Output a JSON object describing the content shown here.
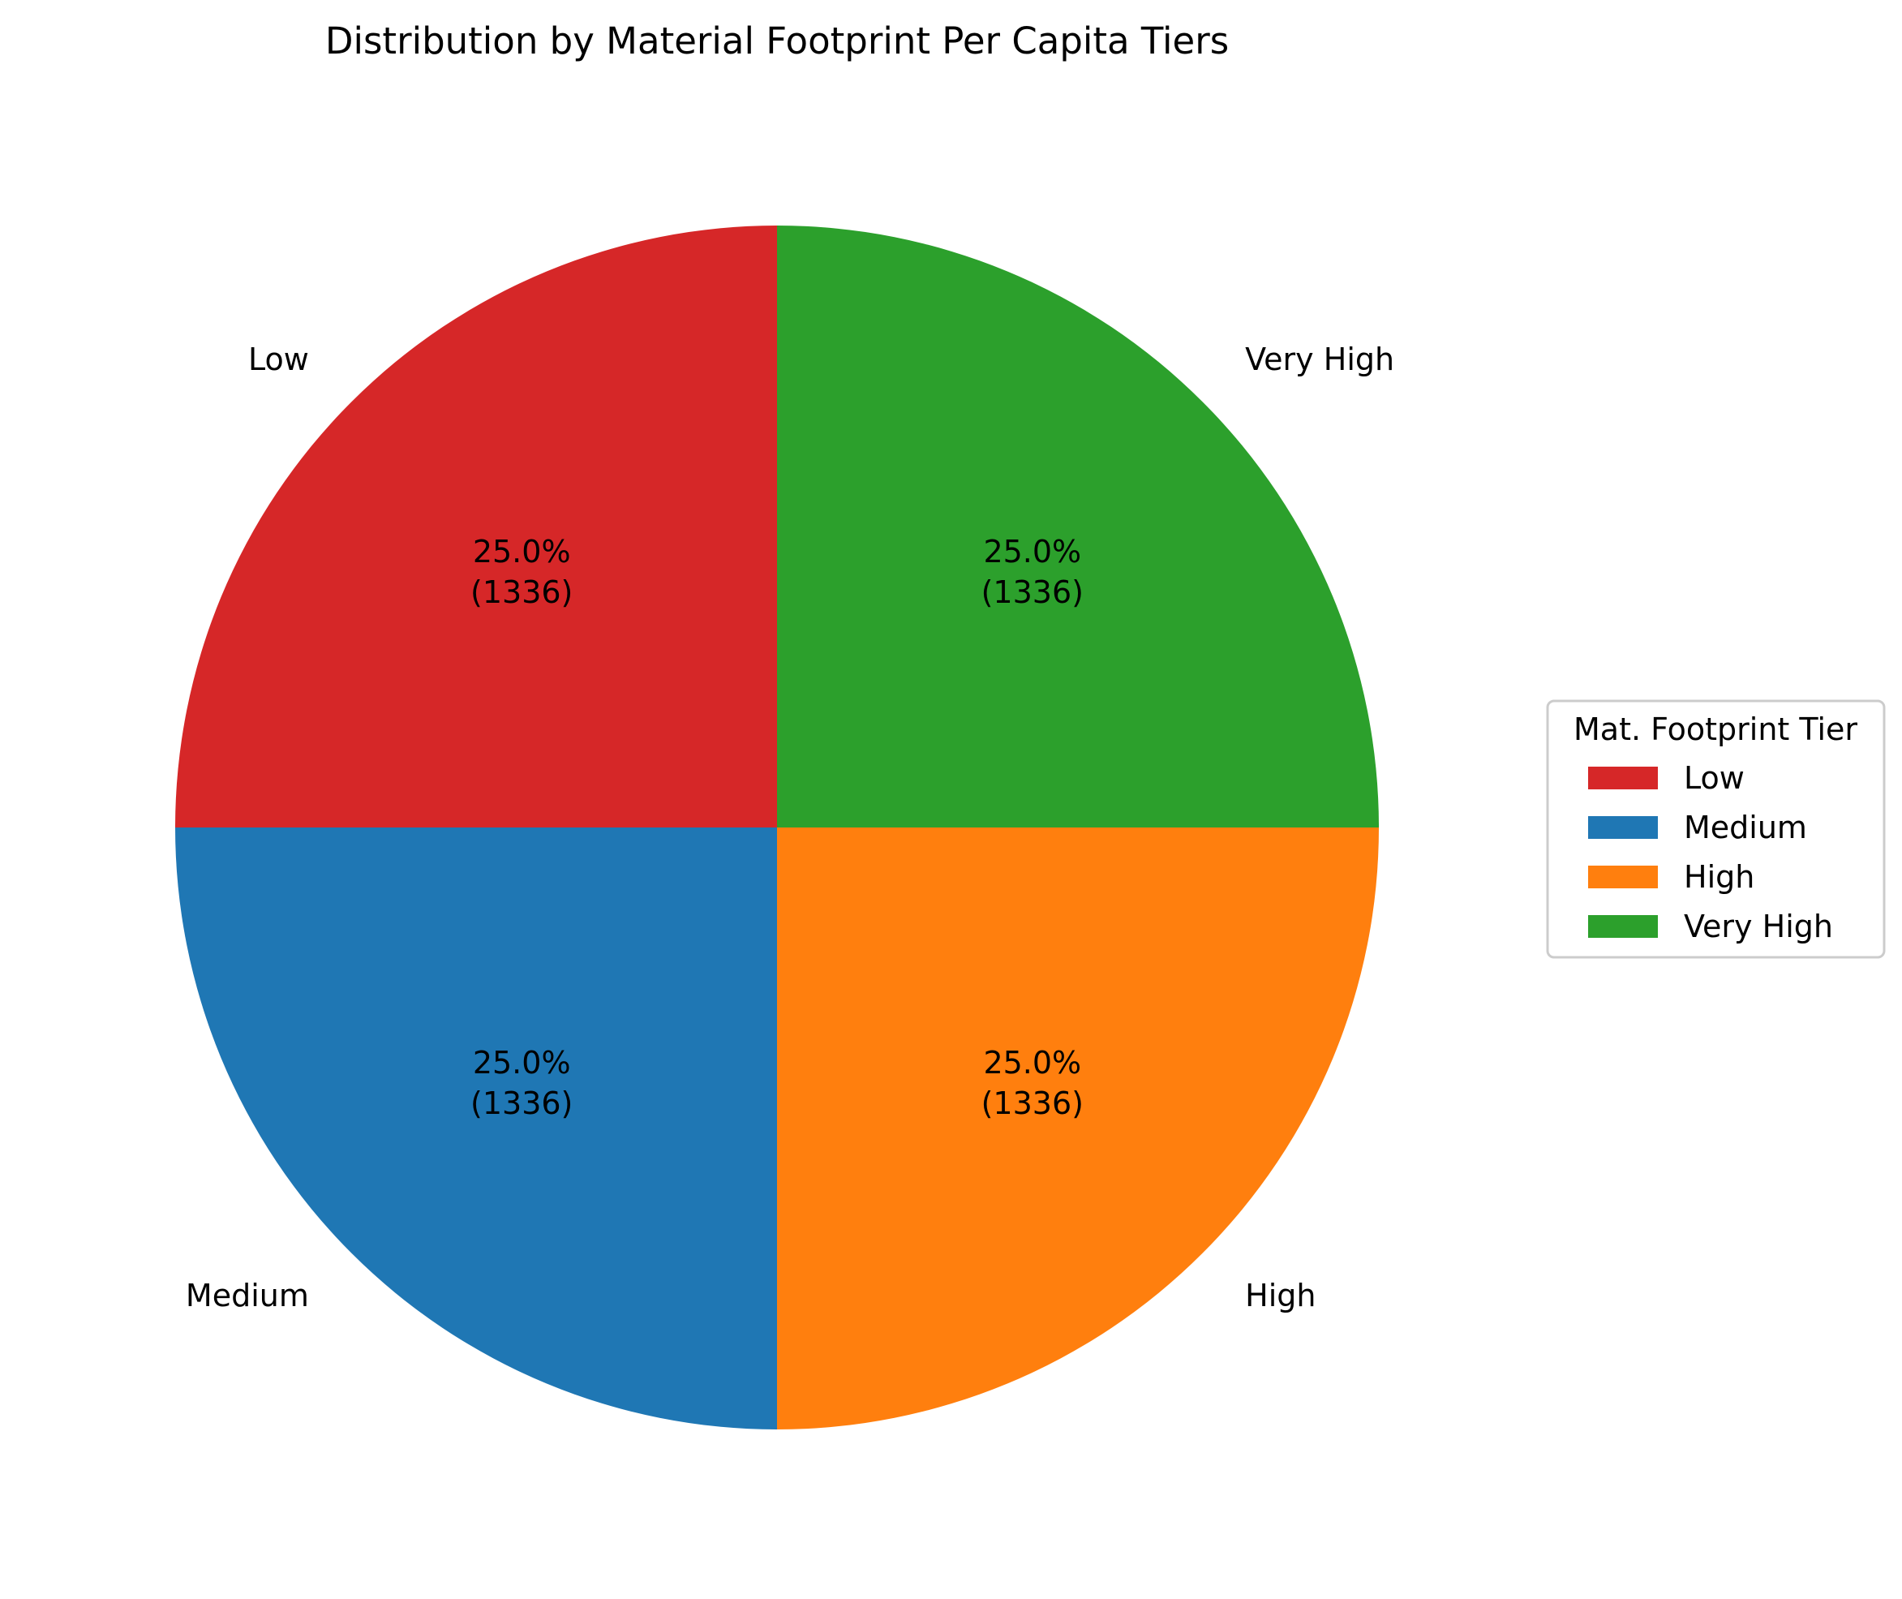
{
  "chart_data": {
    "type": "pie",
    "title": "Distribution by Material Footprint Per Capita Tiers",
    "slices": [
      {
        "label": "Low",
        "value": 1336,
        "percent": "25.0%",
        "count_label": "(1336)",
        "color": "#d62728"
      },
      {
        "label": "Medium",
        "value": 1336,
        "percent": "25.0%",
        "count_label": "(1336)",
        "color": "#1f77b4"
      },
      {
        "label": "High",
        "value": 1336,
        "percent": "25.0%",
        "count_label": "(1336)",
        "color": "#ff7f0e"
      },
      {
        "label": "Very High",
        "value": 1336,
        "percent": "25.0%",
        "count_label": "(1336)",
        "color": "#2ca02c"
      }
    ],
    "start_angle_deg": 90,
    "direction": "counterclockwise",
    "legend": {
      "title": "Mat. Footprint Tier",
      "placement": "center-right",
      "entries": [
        "Low",
        "Medium",
        "High",
        "Very High"
      ]
    }
  }
}
